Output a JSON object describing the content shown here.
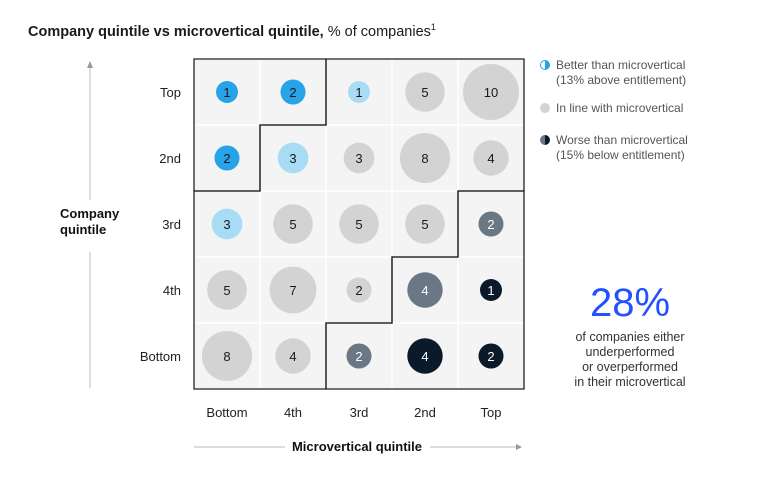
{
  "title": {
    "bold": "Company quintile vs microvertical quintile,",
    "rest": " % of companies",
    "footnote": "1"
  },
  "colors": {
    "better": "#29a3e8",
    "better_light": "#a8dcf4",
    "inline": "#d3d3d3",
    "worse_mid": "#6b7785",
    "worse_dark": "#0b1a2b",
    "grid_bg": "#f4f4f4",
    "stat": "#2251ff"
  },
  "legend": [
    {
      "label": "Better than microvertical",
      "sub": "(13% above entitlement)",
      "icon": "half-blue-circle-icon"
    },
    {
      "label": "In line with microvertical",
      "sub": "",
      "icon": "grey-circle-icon"
    },
    {
      "label": "Worse than microvertical",
      "sub": "(15% below entitlement)",
      "icon": "half-dark-circle-icon"
    }
  ],
  "stat": {
    "value": "28%",
    "text": [
      "of companies either",
      "underperformed",
      "or overperformed",
      "in their microvertical"
    ]
  },
  "chart_data": {
    "type": "heatmap",
    "xlabel": "Microvertical quintile",
    "ylabel": [
      "Company",
      "quintile"
    ],
    "x_categories": [
      "Bottom",
      "4th",
      "3rd",
      "2nd",
      "Top"
    ],
    "y_categories": [
      "Top",
      "2nd",
      "3rd",
      "4th",
      "Bottom"
    ],
    "values": [
      [
        1,
        2,
        1,
        5,
        10
      ],
      [
        2,
        3,
        3,
        8,
        4
      ],
      [
        3,
        5,
        5,
        5,
        2
      ],
      [
        5,
        7,
        2,
        4,
        1
      ],
      [
        8,
        4,
        2,
        4,
        2
      ]
    ],
    "categories_matrix": [
      [
        "better",
        "better",
        "better_light",
        "inline",
        "inline"
      ],
      [
        "better",
        "better_light",
        "inline",
        "inline",
        "inline"
      ],
      [
        "better_light",
        "inline",
        "inline",
        "inline",
        "worse_mid"
      ],
      [
        "inline",
        "inline",
        "inline",
        "worse_mid",
        "worse_dark"
      ],
      [
        "inline",
        "inline",
        "worse_mid",
        "worse_dark",
        "worse_dark"
      ]
    ]
  }
}
